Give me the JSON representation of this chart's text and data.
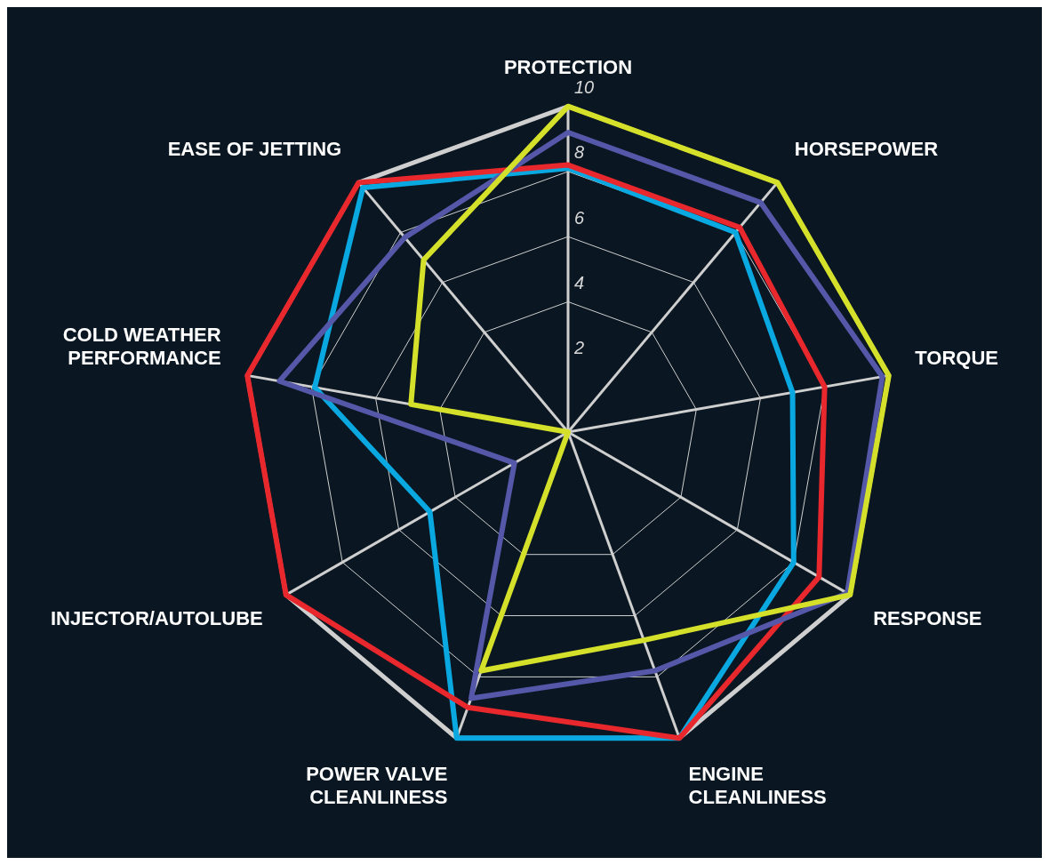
{
  "chart_data": {
    "type": "radar",
    "categories": [
      "PROTECTION",
      "HORSEPOWER",
      "TORQUE",
      "RESPONSE",
      "ENGINE CLEANLINESS",
      "POWER VALVE CLEANLINESS",
      "INJECTOR/AUTOLUBE",
      "COLD WEATHER PERFORMANCE",
      "EASE OF JETTING"
    ],
    "series": [
      {
        "color": "#d4e02a",
        "values": [
          10,
          10,
          10,
          10,
          6.8,
          7.8,
          0,
          4.9,
          6.9
        ]
      },
      {
        "color": "#5558a8",
        "values": [
          9.2,
          9.2,
          9.8,
          9.9,
          7.8,
          8.7,
          1.9,
          9,
          7.8
        ]
      },
      {
        "color": "#e8282c",
        "values": [
          8.2,
          8.2,
          8,
          8.9,
          10,
          9,
          10,
          10,
          10
        ]
      },
      {
        "color": "#0aa8e0",
        "values": [
          8.1,
          8,
          7,
          8,
          10,
          10,
          4.9,
          7.9,
          9.8
        ]
      }
    ],
    "ylim": [
      0,
      10
    ],
    "yticks": [
      2,
      4,
      6,
      8,
      10
    ],
    "grid": true,
    "legend": false
  }
}
